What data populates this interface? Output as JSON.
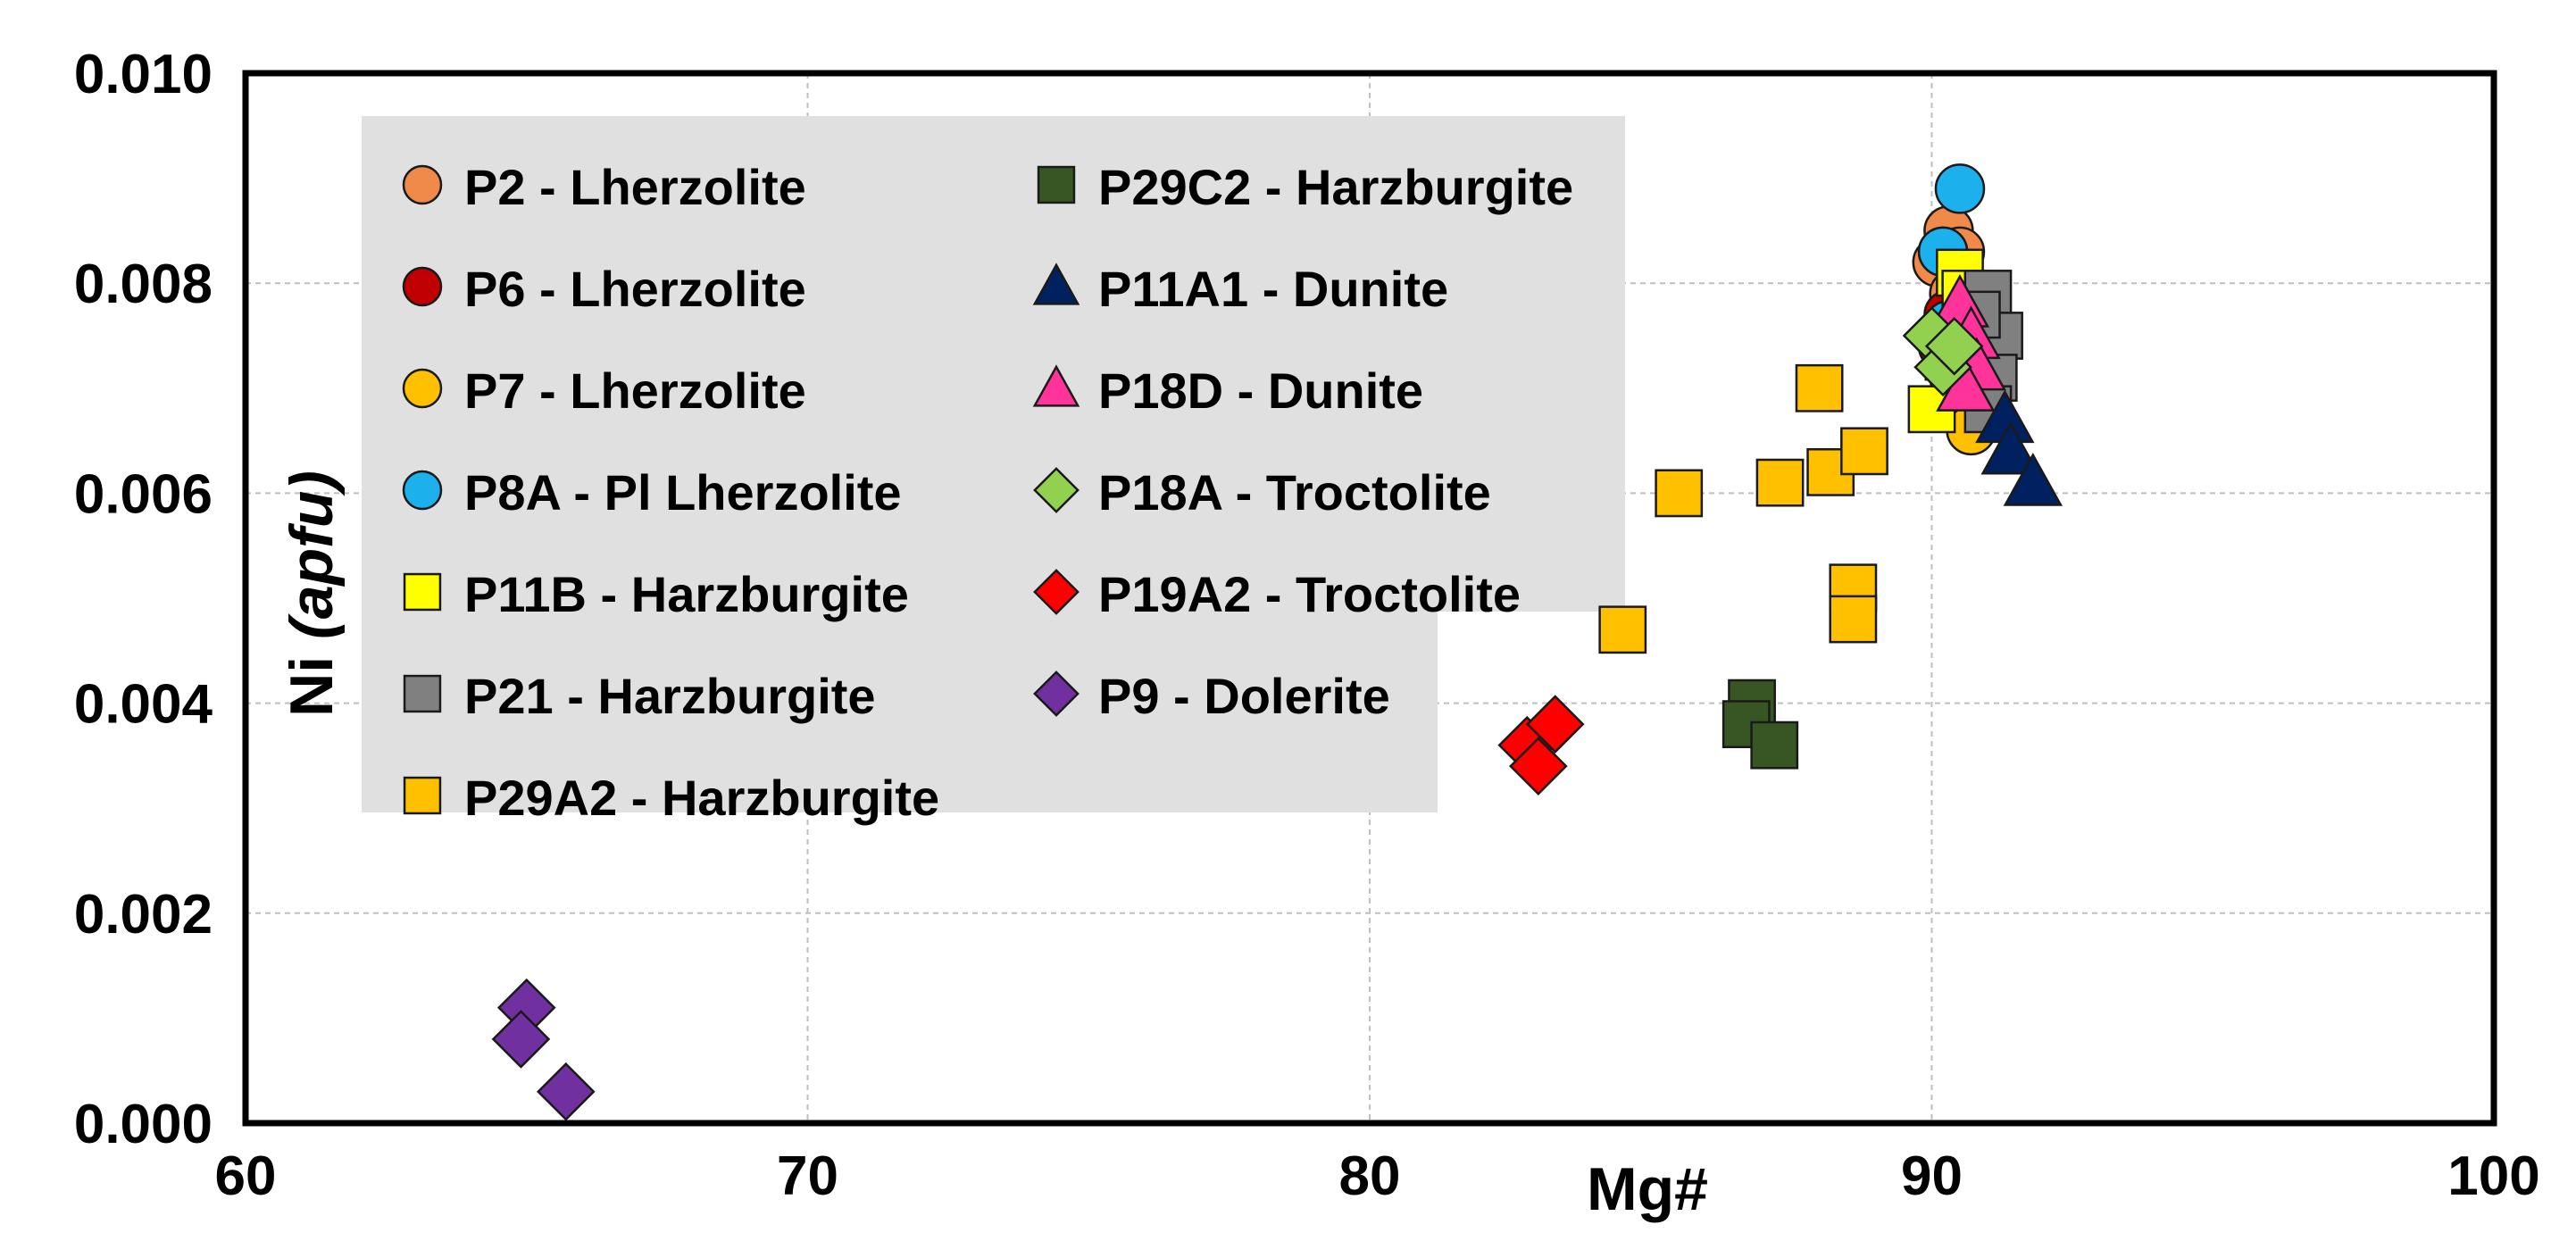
{
  "chart_data": {
    "type": "scatter",
    "title": "",
    "xlabel": "Mg#",
    "ylabel_main": "Ni ",
    "ylabel_italic": "(apfu)",
    "xlim": [
      60,
      100
    ],
    "ylim": [
      0,
      0.01
    ],
    "x_ticks": [
      "60",
      "70",
      "80",
      "90",
      "100"
    ],
    "y_ticks": [
      "0.000",
      "0.002",
      "0.004",
      "0.006",
      "0.008",
      "0.010"
    ],
    "grid": true,
    "legend_position": "top-left",
    "series": [
      {
        "name": "P2 - Lherzolite",
        "marker": "circle",
        "color": "#F08A4B",
        "points": [
          [
            90.3,
            0.0085
          ],
          [
            90.5,
            0.0083
          ],
          [
            90.1,
            0.0082
          ],
          [
            90.4,
            0.0079
          ]
        ]
      },
      {
        "name": "P6 - Lherzolite",
        "marker": "circle",
        "color": "#C00000",
        "points": [
          [
            90.2,
            0.0074
          ],
          [
            90.4,
            0.0072
          ],
          [
            90.3,
            0.0077
          ]
        ]
      },
      {
        "name": "P7 - Lherzolite",
        "marker": "circle",
        "color": "#FFC000",
        "points": [
          [
            90.6,
            0.0068
          ],
          [
            90.7,
            0.0066
          ],
          [
            90.4,
            0.0071
          ],
          [
            90.2,
            0.0083
          ]
        ]
      },
      {
        "name": "P8A - Pl Lherzolite",
        "marker": "circle",
        "color": "#1CB0EC",
        "points": [
          [
            90.5,
            0.0089
          ],
          [
            90.2,
            0.0083
          ],
          [
            90.3,
            0.0076
          ]
        ]
      },
      {
        "name": "P11B - Harzburgite",
        "marker": "square",
        "color": "#FFFF00",
        "points": [
          [
            90.5,
            0.0081
          ],
          [
            90.0,
            0.0068
          ],
          [
            90.3,
            0.0073
          ],
          [
            90.6,
            0.0079
          ]
        ]
      },
      {
        "name": "P21 - Harzburgite",
        "marker": "square",
        "color": "#808080",
        "points": [
          [
            91.0,
            0.0079
          ],
          [
            91.2,
            0.0075
          ],
          [
            91.1,
            0.0071
          ],
          [
            91.0,
            0.0068
          ],
          [
            90.8,
            0.0077
          ]
        ]
      },
      {
        "name": "P29A2 - Harzburgite",
        "marker": "square",
        "color": "#FFC000",
        "points": [
          [
            88.0,
            0.007
          ],
          [
            85.5,
            0.006
          ],
          [
            87.3,
            0.0061
          ],
          [
            88.2,
            0.0062
          ],
          [
            88.8,
            0.0064
          ],
          [
            84.5,
            0.0047
          ],
          [
            88.6,
            0.0051
          ],
          [
            88.6,
            0.0048
          ]
        ]
      },
      {
        "name": "P29C2 - Harzburgite",
        "marker": "square",
        "color": "#375623",
        "points": [
          [
            86.8,
            0.004
          ],
          [
            86.7,
            0.0038
          ],
          [
            87.2,
            0.0036
          ]
        ]
      },
      {
        "name": "P11A1 - Dunite",
        "marker": "triangle",
        "color": "#002060",
        "points": [
          [
            91.3,
            0.0067
          ],
          [
            91.4,
            0.0064
          ],
          [
            91.8,
            0.0061
          ]
        ]
      },
      {
        "name": "P18D - Dunite",
        "marker": "triangle",
        "color": "#FF3399",
        "points": [
          [
            90.5,
            0.0078
          ],
          [
            90.7,
            0.0075
          ],
          [
            90.8,
            0.0072
          ],
          [
            90.6,
            0.007
          ]
        ]
      },
      {
        "name": "P18A - Troctolite",
        "marker": "diamond",
        "color": "#92D050",
        "points": [
          [
            90.0,
            0.0075
          ],
          [
            90.2,
            0.0072
          ],
          [
            90.4,
            0.0074
          ]
        ]
      },
      {
        "name": "P19A2 - Troctolite",
        "marker": "diamond",
        "color": "#FF0000",
        "points": [
          [
            82.8,
            0.0036
          ],
          [
            83.3,
            0.0038
          ],
          [
            83.0,
            0.0034
          ]
        ]
      },
      {
        "name": "P9 - Dolerite",
        "marker": "diamond",
        "color": "#7030A0",
        "points": [
          [
            65.0,
            0.0011
          ],
          [
            64.9,
            0.0008
          ],
          [
            65.7,
            0.0003
          ]
        ]
      }
    ],
    "legend_columns": [
      [
        "P2 - Lherzolite",
        "P6 - Lherzolite",
        "P7 - Lherzolite",
        "P8A - Pl Lherzolite",
        "P11B - Harzburgite",
        "P21 - Harzburgite",
        "P29A2 - Harzburgite"
      ],
      [
        "P29C2 - Harzburgite",
        "P11A1 - Dunite",
        "P18D - Dunite",
        "P18A - Troctolite",
        "P19A2 - Troctolite",
        "P9 - Dolerite"
      ]
    ]
  }
}
